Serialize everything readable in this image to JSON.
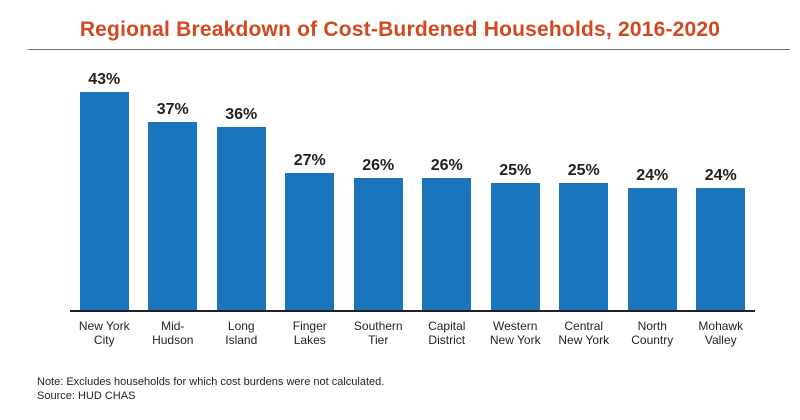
{
  "title": "Regional Breakdown of Cost-Burdened Households, 2016-2020",
  "colors": {
    "title": "#D2491F",
    "bar": "#1B75BC",
    "axis": "#231F20",
    "rule": "#6D6E71",
    "label": "#231F20"
  },
  "chart_data": {
    "type": "bar",
    "title": "Regional Breakdown of Cost-Burdened Households, 2016-2020",
    "categories": [
      "New York\nCity",
      "Mid-\nHudson",
      "Long\nIsland",
      "Finger\nLakes",
      "Southern\nTier",
      "Capital\nDistrict",
      "Western\nNew York",
      "Central\nNew York",
      "North\nCountry",
      "Mohawk\nValley"
    ],
    "values": [
      43,
      37,
      36,
      27,
      26,
      26,
      25,
      25,
      24,
      24
    ],
    "value_labels": [
      "43%",
      "37%",
      "36%",
      "27%",
      "26%",
      "26%",
      "25%",
      "25%",
      "24%",
      "24%"
    ],
    "xlabel": "",
    "ylabel": "",
    "ylim": [
      0,
      45
    ],
    "grid": false,
    "legend": "none",
    "bar_color": "#1B75BC"
  },
  "notes": {
    "note": "Note: Excludes households for which cost burdens were not calculated.",
    "source": "Source: HUD CHAS"
  }
}
